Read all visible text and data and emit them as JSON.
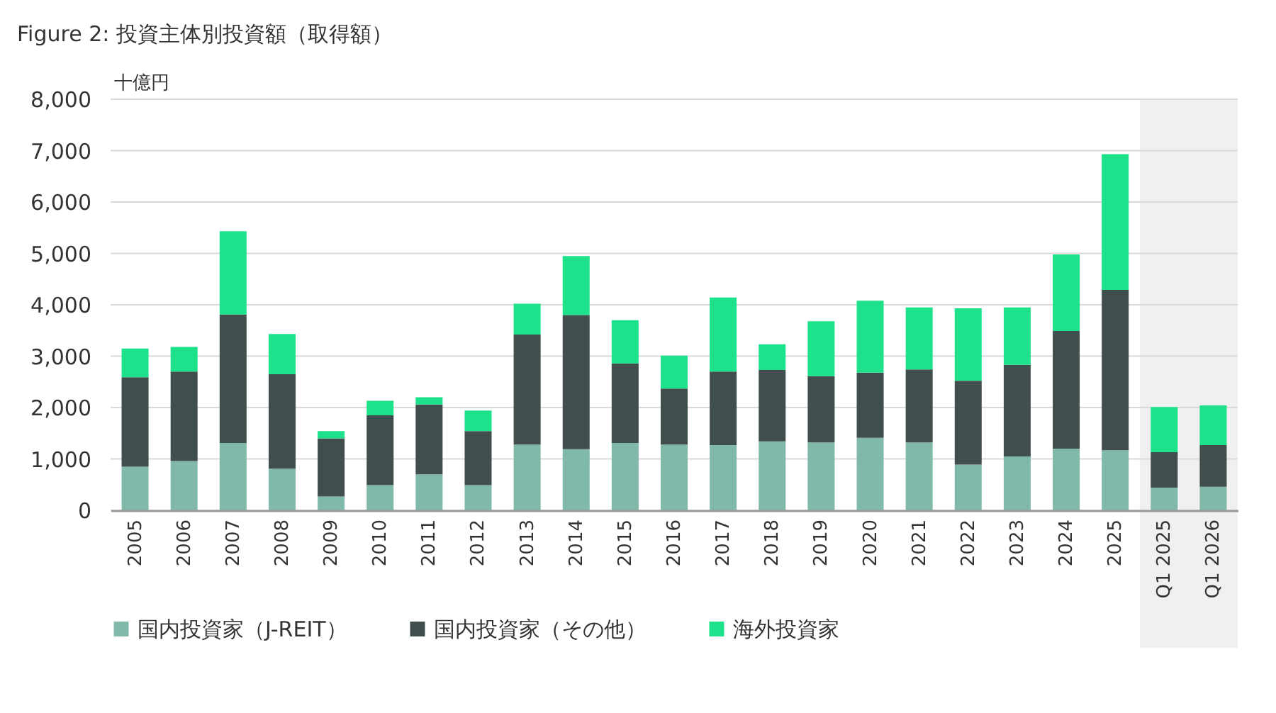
{
  "chart_data": {
    "type": "bar",
    "title": "Figure 2: 投資主体別投資額（取得額）",
    "ylabel": "十億円",
    "categories": [
      "2005",
      "2006",
      "2007",
      "2008",
      "2009",
      "2010",
      "2011",
      "2012",
      "2013",
      "2014",
      "2015",
      "2016",
      "2017",
      "2018",
      "2019",
      "2020",
      "2021",
      "2022",
      "2023",
      "2024",
      "2025",
      "Q1 2025",
      "Q1 2026"
    ],
    "stacked": true,
    "series": [
      {
        "name": "国内投資家（J-REIT）",
        "color": "#80b9a9",
        "values": [
          850,
          960,
          1310,
          810,
          270,
          490,
          700,
          490,
          1280,
          1190,
          1310,
          1280,
          1270,
          1340,
          1320,
          1410,
          1320,
          890,
          1050,
          1200,
          1170,
          440,
          460
        ]
      },
      {
        "name": "国内投資家（その他）",
        "color": "#404f4e",
        "values": [
          1740,
          1740,
          2500,
          1840,
          1130,
          1360,
          1360,
          1050,
          2140,
          2610,
          1550,
          1090,
          1430,
          1390,
          1290,
          1270,
          1420,
          1630,
          1780,
          2290,
          3120,
          690,
          810
        ]
      },
      {
        "name": "海外投資家",
        "color": "#1de28b",
        "values": [
          560,
          480,
          1620,
          780,
          140,
          280,
          140,
          400,
          600,
          1150,
          840,
          640,
          1440,
          500,
          1070,
          1400,
          1210,
          1410,
          1120,
          1490,
          2640,
          880,
          770
        ]
      }
    ],
    "ylim": [
      0,
      8000
    ],
    "yticks": [
      0,
      {
        "value": 1000,
        "label": "1,000"
      },
      {
        "value": 2000,
        "label": "2,000"
      },
      {
        "value": 3000,
        "label": "3,000"
      },
      {
        "value": 4000,
        "label": "4,000"
      },
      {
        "value": 5000,
        "label": "5,000"
      },
      {
        "value": 6000,
        "label": "6,000"
      },
      {
        "value": 7000,
        "label": "7,000"
      },
      {
        "value": 8000,
        "label": "8,000"
      }
    ],
    "grid": "y",
    "legend": "bottom",
    "bands": [
      {
        "axis": "x",
        "from": "Q1 2025",
        "to": "Q1 2026",
        "color": "#f0f0f0"
      }
    ]
  }
}
